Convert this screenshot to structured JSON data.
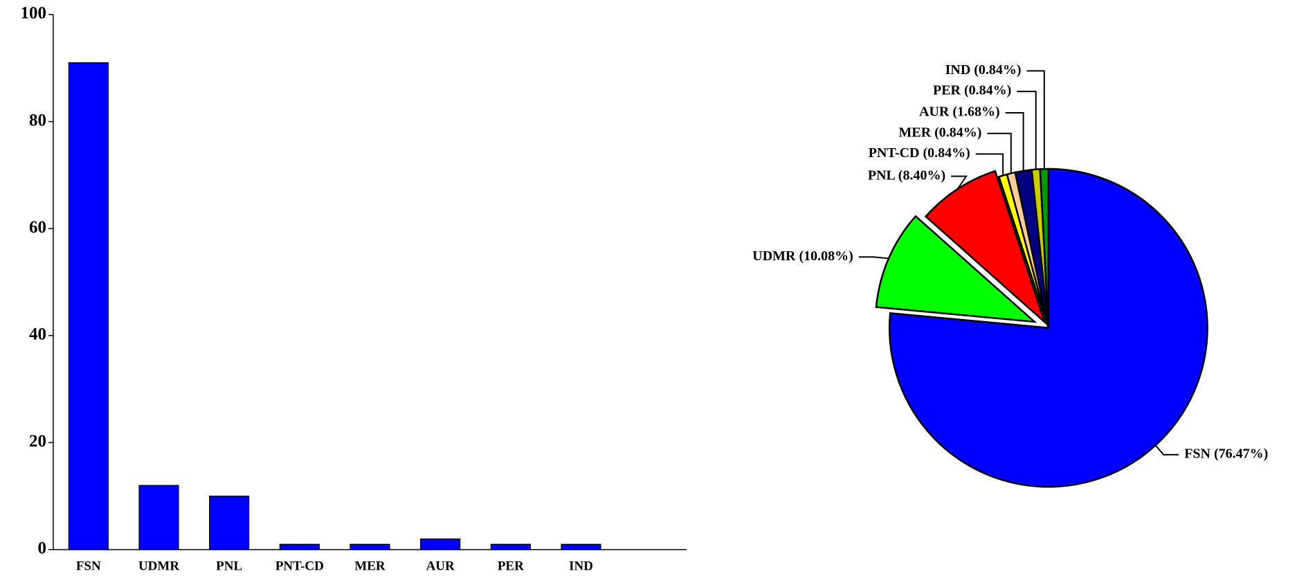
{
  "chart_data": [
    {
      "type": "bar",
      "categories": [
        "FSN",
        "UDMR",
        "PNL",
        "PNT-CD",
        "MER",
        "AUR",
        "PER",
        "IND"
      ],
      "values": [
        91,
        12,
        10,
        1,
        1,
        2,
        1,
        1
      ],
      "color": "#0000ff",
      "ylim": [
        0,
        100
      ],
      "yticks": [
        0,
        20,
        40,
        60,
        80,
        100
      ],
      "grid": false
    },
    {
      "type": "pie",
      "categories": [
        "FSN",
        "UDMR",
        "PNL",
        "PNT-CD",
        "MER",
        "AUR",
        "PER",
        "IND"
      ],
      "values": [
        76.47,
        10.08,
        8.4,
        0.84,
        0.84,
        1.68,
        0.84,
        0.84
      ],
      "value_labels": [
        "FSN (76.47%)",
        "UDMR (10.08%)",
        "PNL (8.40%)",
        "PNT-CD (0.84%)",
        "MER (0.84%)",
        "AUR (1.68%)",
        "PER (0.84%)",
        "IND (0.84%)"
      ],
      "colors": [
        "#0000ff",
        "#00ff00",
        "#ff0000",
        "#ffff00",
        "#ffcc99",
        "#000080",
        "#cccc00",
        "#009900"
      ]
    }
  ]
}
